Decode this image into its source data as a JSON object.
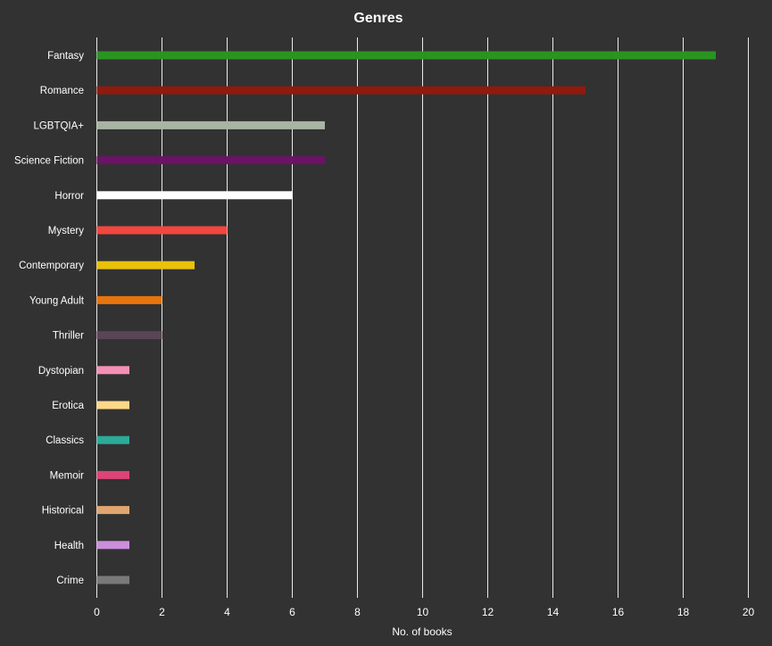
{
  "chart_data": {
    "type": "bar",
    "orientation": "horizontal",
    "title": "Genres",
    "xlabel": "No. of books",
    "ylabel": "",
    "xlim": [
      0,
      20
    ],
    "xticks": [
      0,
      2,
      4,
      6,
      8,
      10,
      12,
      14,
      16,
      18,
      20
    ],
    "grid": "vertical",
    "background": "#323232",
    "categories": [
      "Fantasy",
      "Romance",
      "LGBTQIA+",
      "Science Fiction",
      "Horror",
      "Mystery",
      "Contemporary",
      "Young Adult",
      "Thriller",
      "Dystopian",
      "Erotica",
      "Classics",
      "Memoir",
      "Historical",
      "Health",
      "Crime"
    ],
    "values": [
      19,
      15,
      7,
      7,
      6,
      4,
      3,
      2,
      2,
      1,
      1,
      1,
      1,
      1,
      1,
      1
    ],
    "colors": [
      "#2a9420",
      "#8f1a0d",
      "#a8b5a2",
      "#6b1366",
      "#ffffff",
      "#f2473f",
      "#e8c20b",
      "#e8740c",
      "#5a4556",
      "#f490b5",
      "#fdd889",
      "#2cab99",
      "#dd4477",
      "#e0a570",
      "#cc8fdc",
      "#7a7a7a"
    ]
  }
}
